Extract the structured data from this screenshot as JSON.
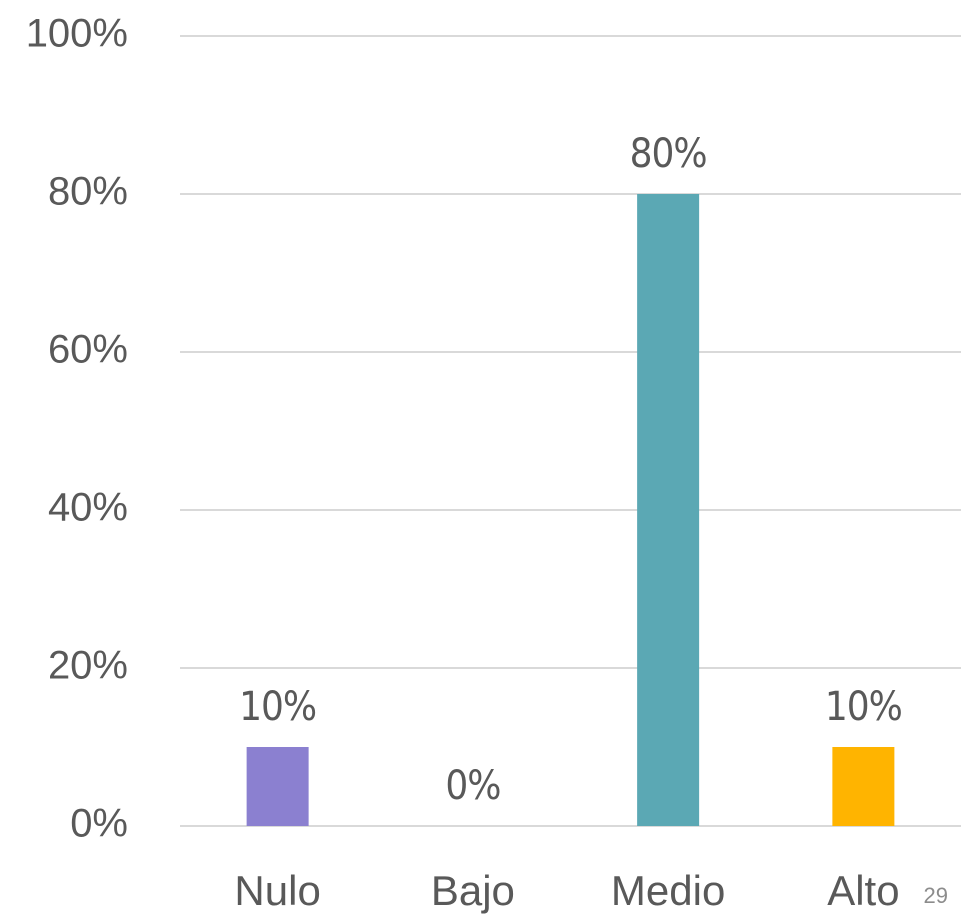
{
  "chart_data": {
    "type": "bar",
    "categories": [
      "Nulo",
      "Bajo",
      "Medio",
      "Alto"
    ],
    "values": [
      10,
      0,
      80,
      10
    ],
    "value_labels": [
      "10%",
      "0%",
      "80%",
      "10%"
    ],
    "colors": [
      "#8b80d0",
      null,
      "#5ba8b4",
      "#ffb400"
    ],
    "ylim": [
      0,
      100
    ],
    "yticks": [
      {
        "value": 0,
        "label": "0%"
      },
      {
        "value": 20,
        "label": "20%"
      },
      {
        "value": 40,
        "label": "40%"
      },
      {
        "value": 60,
        "label": "60%"
      },
      {
        "value": 80,
        "label": "80%"
      },
      {
        "value": 100,
        "label": "100%"
      }
    ],
    "grid": true
  },
  "page_number": "29"
}
